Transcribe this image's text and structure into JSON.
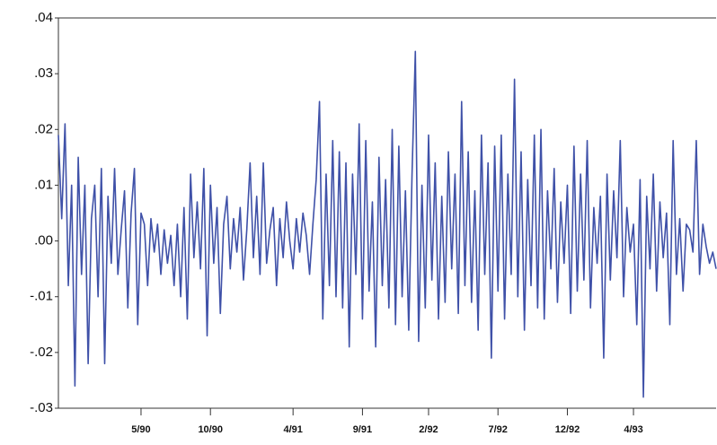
{
  "chart_data": {
    "type": "line",
    "series": [
      {
        "color": "#3f51a8",
        "values": [
          0.019,
          0.004,
          0.021,
          -0.008,
          0.01,
          -0.026,
          0.015,
          -0.006,
          0.01,
          -0.022,
          0.004,
          0.01,
          -0.01,
          0.013,
          -0.022,
          0.008,
          -0.004,
          0.013,
          -0.006,
          0.002,
          0.009,
          -0.012,
          0.005,
          0.013,
          -0.015,
          0.005,
          0.003,
          -0.008,
          0.004,
          -0.002,
          0.003,
          -0.006,
          0.002,
          -0.004,
          0.001,
          -0.008,
          0.003,
          -0.01,
          0.006,
          -0.014,
          0.012,
          -0.003,
          0.007,
          -0.005,
          0.013,
          -0.017,
          0.01,
          -0.004,
          0.006,
          -0.013,
          0.003,
          0.008,
          -0.005,
          0.004,
          -0.002,
          0.006,
          -0.007,
          0.002,
          0.014,
          -0.003,
          0.008,
          -0.006,
          0.014,
          -0.004,
          0.002,
          0.006,
          -0.008,
          0.004,
          -0.003,
          0.007,
          0.0,
          -0.005,
          0.004,
          -0.002,
          0.005,
          0.001,
          -0.006,
          0.003,
          0.011,
          0.025,
          -0.014,
          0.012,
          -0.008,
          0.018,
          -0.01,
          0.016,
          -0.012,
          0.014,
          -0.019,
          0.012,
          -0.006,
          0.021,
          -0.014,
          0.018,
          -0.009,
          0.007,
          -0.019,
          0.015,
          -0.008,
          0.011,
          -0.012,
          0.02,
          -0.015,
          0.017,
          -0.01,
          0.009,
          -0.016,
          0.012,
          0.034,
          -0.018,
          0.01,
          -0.012,
          0.019,
          -0.007,
          0.014,
          -0.014,
          0.008,
          -0.011,
          0.016,
          -0.005,
          0.012,
          -0.013,
          0.025,
          -0.008,
          0.016,
          -0.011,
          0.009,
          -0.016,
          0.019,
          -0.006,
          0.014,
          -0.021,
          0.017,
          -0.009,
          0.019,
          -0.014,
          0.012,
          -0.006,
          0.029,
          -0.01,
          0.016,
          -0.016,
          0.011,
          -0.008,
          0.019,
          -0.012,
          0.02,
          -0.014,
          0.009,
          -0.005,
          0.013,
          -0.011,
          0.007,
          -0.004,
          0.01,
          -0.013,
          0.017,
          -0.009,
          0.012,
          -0.007,
          0.018,
          -0.012,
          0.006,
          -0.004,
          0.008,
          -0.021,
          0.012,
          -0.007,
          0.009,
          -0.003,
          0.018,
          -0.01,
          0.006,
          -0.002,
          0.003,
          -0.015,
          0.011,
          -0.028,
          0.008,
          -0.005,
          0.012,
          -0.009,
          0.007,
          -0.003,
          0.005,
          -0.015,
          0.018,
          -0.006,
          0.004,
          -0.009,
          0.003,
          0.002,
          -0.002,
          0.018,
          -0.006,
          0.003,
          -0.001,
          -0.004,
          -0.002,
          -0.005
        ]
      }
    ],
    "xlim": [
      0,
      199
    ],
    "xticks": [
      {
        "value": 25,
        "label": "5/90"
      },
      {
        "value": 46,
        "label": "10/90"
      },
      {
        "value": 71,
        "label": "4/91"
      },
      {
        "value": 92,
        "label": "9/91"
      },
      {
        "value": 112,
        "label": "2/92"
      },
      {
        "value": 133,
        "label": "7/92"
      },
      {
        "value": 154,
        "label": "12/92"
      },
      {
        "value": 174,
        "label": "4/93"
      }
    ],
    "ylim": [
      -0.03,
      0.04
    ],
    "yticks": [
      {
        "value": 0.04,
        "label": ".04"
      },
      {
        "value": 0.03,
        "label": ".03"
      },
      {
        "value": 0.02,
        "label": ".02"
      },
      {
        "value": 0.01,
        "label": ".01"
      },
      {
        "value": 0,
        "label": ".00"
      },
      {
        "value": -0.01,
        "label": "-.01"
      },
      {
        "value": -0.02,
        "label": "-.02"
      },
      {
        "value": -0.03,
        "label": "-.03"
      }
    ]
  }
}
